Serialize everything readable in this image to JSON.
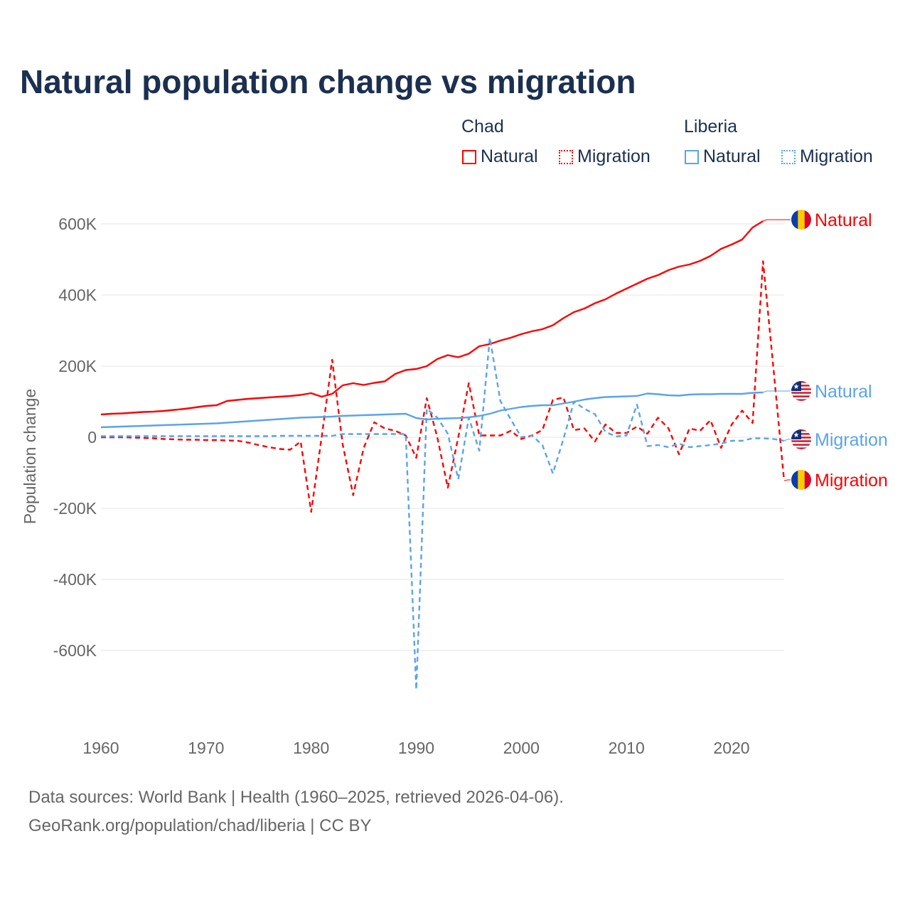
{
  "chart_data": {
    "type": "line",
    "title": "Natural population change vs migration",
    "xlabel": "",
    "ylabel": "Population change",
    "xlim": [
      1960,
      2025
    ],
    "ylim": [
      -750000,
      650000
    ],
    "x_ticks": [
      1960,
      1970,
      1980,
      1990,
      2000,
      2010,
      2020
    ],
    "x_tick_labels": [
      "1960",
      "1970",
      "1980",
      "1990",
      "2000",
      "2010",
      "2020"
    ],
    "y_ticks": [
      600000,
      400000,
      200000,
      0,
      -200000,
      -400000,
      -600000
    ],
    "y_tick_labels": [
      "600K",
      "400K",
      "200K",
      "0",
      "-200K",
      "-400K",
      "-600K"
    ],
    "grid": true,
    "legend_position": "top-right",
    "legend_groups": [
      {
        "name": "Chad",
        "items": [
          "Natural",
          "Migration"
        ]
      },
      {
        "name": "Liberia",
        "items": [
          "Natural",
          "Migration"
        ]
      }
    ],
    "x": [
      1960,
      1961,
      1962,
      1963,
      1964,
      1965,
      1966,
      1967,
      1968,
      1969,
      1970,
      1971,
      1972,
      1973,
      1974,
      1975,
      1976,
      1977,
      1978,
      1979,
      1980,
      1981,
      1982,
      1983,
      1984,
      1985,
      1986,
      1987,
      1988,
      1989,
      1990,
      1991,
      1992,
      1993,
      1994,
      1995,
      1996,
      1997,
      1998,
      1999,
      2000,
      2001,
      2002,
      2003,
      2004,
      2005,
      2006,
      2007,
      2008,
      2009,
      2010,
      2011,
      2012,
      2013,
      2014,
      2015,
      2016,
      2017,
      2018,
      2019,
      2020,
      2021,
      2022,
      2023,
      2024,
      2025
    ],
    "series": [
      {
        "name": "Chad Natural",
        "country": "Chad",
        "kind": "Natural",
        "color": "#ff0000",
        "dash": "solid",
        "end_label": "Natural",
        "values": [
          64000,
          66000,
          67000,
          69000,
          71000,
          72000,
          74000,
          77000,
          80000,
          84000,
          88000,
          90000,
          102000,
          105000,
          108000,
          110000,
          112000,
          114000,
          116000,
          119000,
          124000,
          114000,
          122000,
          146000,
          152000,
          147000,
          153000,
          157000,
          178000,
          189000,
          192000,
          200000,
          220000,
          231000,
          225000,
          235000,
          256000,
          262000,
          272000,
          280000,
          290000,
          298000,
          304000,
          315000,
          335000,
          352000,
          362000,
          377000,
          388000,
          404000,
          418000,
          432000,
          446000,
          456000,
          470000,
          480000,
          486000,
          496000,
          510000,
          530000,
          542000,
          556000,
          590000,
          608000,
          null,
          null
        ]
      },
      {
        "name": "Chad Migration",
        "country": "Chad",
        "kind": "Migration",
        "color": "#ff0000",
        "dash": "dashed",
        "end_label": "Migration",
        "values": [
          0,
          0,
          0,
          -1000,
          -2000,
          -3000,
          -5000,
          -6000,
          -7000,
          -7000,
          -8000,
          -8000,
          -9000,
          -10000,
          -15000,
          -22000,
          -28000,
          -33000,
          -35000,
          -12000,
          -210000,
          0,
          218000,
          -20000,
          -163000,
          -30000,
          42000,
          25000,
          18000,
          5000,
          -58000,
          110000,
          0,
          -142000,
          0,
          152000,
          5000,
          5000,
          5000,
          18000,
          -5000,
          5000,
          20000,
          105000,
          112000,
          20000,
          25000,
          -12000,
          36000,
          12000,
          12000,
          30000,
          10000,
          55000,
          25000,
          -48000,
          25000,
          18000,
          48000,
          -30000,
          35000,
          75000,
          40000,
          495000,
          190000,
          -122000
        ]
      },
      {
        "name": "Liberia Natural",
        "country": "Liberia",
        "kind": "Natural",
        "color": "#5ba3ea",
        "dash": "solid",
        "end_label": "Natural",
        "values": [
          28000,
          29000,
          30000,
          31000,
          32000,
          33000,
          34000,
          35000,
          36000,
          37000,
          38000,
          39000,
          41000,
          43000,
          45000,
          47000,
          49000,
          51000,
          53000,
          55000,
          56000,
          57000,
          58000,
          60000,
          61000,
          62000,
          63000,
          64000,
          65000,
          66000,
          54000,
          50000,
          52000,
          53000,
          54000,
          56000,
          60000,
          66000,
          75000,
          80000,
          85000,
          88000,
          90000,
          90000,
          95000,
          100000,
          106000,
          110000,
          113000,
          114000,
          115000,
          116000,
          123000,
          121000,
          118000,
          117000,
          120000,
          121000,
          121000,
          122000,
          122000,
          122000,
          125000,
          126000,
          null,
          null
        ]
      },
      {
        "name": "Liberia Migration",
        "country": "Liberia",
        "kind": "Migration",
        "color": "#5ba3ea",
        "dash": "dashed",
        "end_label": "Migration",
        "values": [
          3000,
          3000,
          3000,
          3000,
          3000,
          3000,
          3000,
          3000,
          3000,
          3000,
          3000,
          3000,
          3000,
          3000,
          3000,
          3000,
          3000,
          4000,
          4000,
          4000,
          4000,
          4000,
          4000,
          9000,
          9000,
          9000,
          9000,
          9000,
          9000,
          9000,
          -710000,
          80000,
          55000,
          10000,
          -118000,
          55000,
          -38000,
          280000,
          102000,
          50000,
          0,
          5000,
          -22000,
          -102000,
          -5000,
          100000,
          80000,
          65000,
          15000,
          2000,
          5000,
          92000,
          -25000,
          -22000,
          -28000,
          -18000,
          -28000,
          -25000,
          -22000,
          -18000,
          -10000,
          -10000,
          -3000,
          -3000,
          -5000,
          -10000
        ]
      }
    ]
  },
  "legend": {
    "chad": {
      "group": "Chad",
      "natural": "Natural",
      "migration": "Migration"
    },
    "liberia": {
      "group": "Liberia",
      "natural": "Natural",
      "migration": "Migration"
    }
  },
  "footer": {
    "line1": "Data sources: World Bank | Health (1960–2025, retrieved 2026-04-06).",
    "line2": "GeoRank.org/population/chad/liberia | CC BY"
  }
}
